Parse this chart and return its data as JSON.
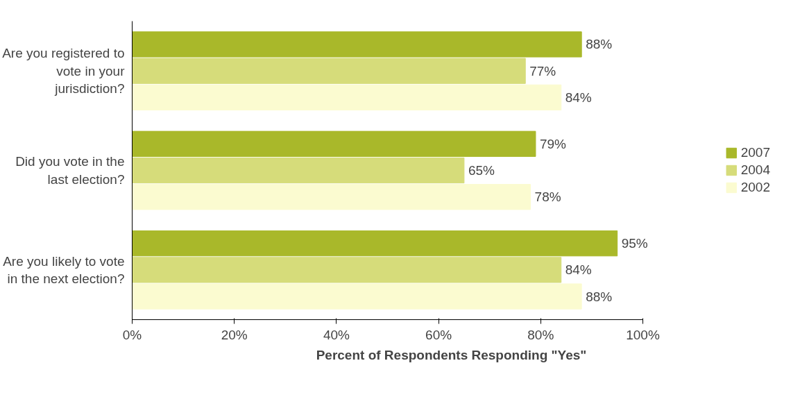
{
  "chart_data": {
    "type": "bar",
    "orientation": "horizontal",
    "xlabel": "Percent of Respondents Responding \"Yes\"",
    "categories": [
      "Are you registered to vote in your jurisdiction?",
      "Did you vote in the last election?",
      "Are you likely to vote in the next election?"
    ],
    "series": [
      {
        "name": "2007",
        "color": "#a9b82a",
        "values": [
          88,
          79,
          95
        ],
        "value_labels": [
          "88%",
          "79%",
          "95%"
        ]
      },
      {
        "name": "2004",
        "color": "#d6dc7a",
        "values": [
          77,
          65,
          84
        ],
        "value_labels": [
          "77%",
          "65%",
          "84%"
        ]
      },
      {
        "name": "2002",
        "color": "#fbfbd0",
        "values": [
          84,
          78,
          88
        ],
        "value_labels": [
          "84%",
          "78%",
          "88%"
        ]
      }
    ],
    "xlim": [
      0,
      100
    ],
    "xticks": [
      {
        "value": 0,
        "label": "0%"
      },
      {
        "value": 20,
        "label": "20%"
      },
      {
        "value": 40,
        "label": "40%"
      },
      {
        "value": 60,
        "label": "60%"
      },
      {
        "value": 80,
        "label": "80%"
      },
      {
        "value": 100,
        "label": "100%"
      }
    ],
    "grid": false,
    "legend": "right"
  }
}
